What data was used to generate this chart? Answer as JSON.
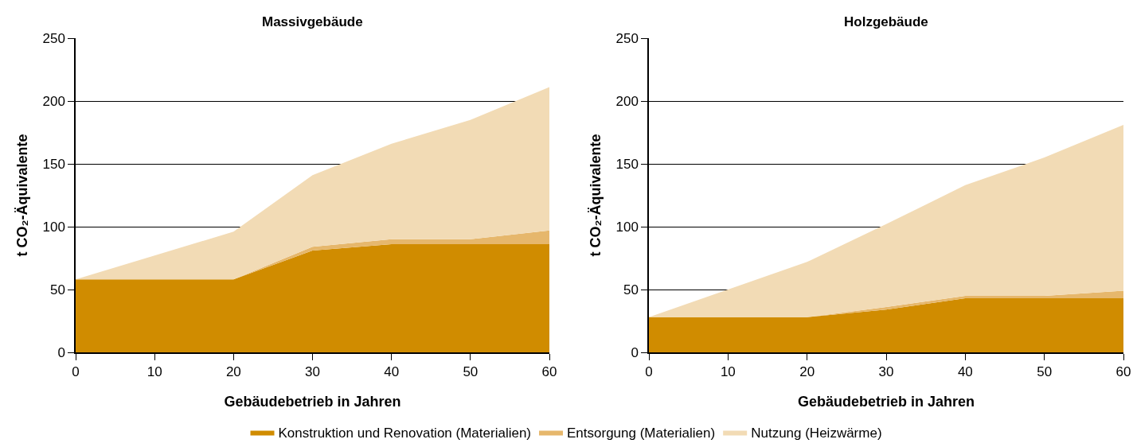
{
  "chart_data": [
    {
      "type": "area",
      "stacked": true,
      "title": "Massivgebäude",
      "xlabel": "Gebäudebetrieb in Jahren",
      "ylabel": "t CO₂-Äquivalente",
      "x": [
        0,
        10,
        20,
        30,
        40,
        50,
        60
      ],
      "xlim": [
        0,
        60
      ],
      "xticks": [
        0,
        10,
        20,
        30,
        40,
        50,
        60
      ],
      "ylim": [
        0,
        250
      ],
      "yticks": [
        0,
        50,
        100,
        150,
        200,
        250
      ],
      "grid": "y",
      "legend": "bottom",
      "series": [
        {
          "name": "Konstruktion und Renovation (Materialien)",
          "color": "#d08c00",
          "values": [
            58,
            58,
            58,
            81,
            86,
            86,
            86
          ]
        },
        {
          "name": "Entsorgung (Materialien)",
          "color": "#e6b76c",
          "values": [
            0,
            0,
            0,
            3,
            4,
            4,
            11
          ]
        },
        {
          "name": "Nutzung (Heizwärme)",
          "color": "#f2dbb5",
          "values": [
            0,
            19,
            38,
            57,
            76,
            95,
            114
          ]
        }
      ]
    },
    {
      "type": "area",
      "stacked": true,
      "title": "Holzgebäude",
      "xlabel": "Gebäudebetrieb in Jahren",
      "ylabel": "t CO₂-Äquivalente",
      "x": [
        0,
        10,
        20,
        30,
        40,
        50,
        60
      ],
      "xlim": [
        0,
        60
      ],
      "xticks": [
        0,
        10,
        20,
        30,
        40,
        50,
        60
      ],
      "ylim": [
        0,
        250
      ],
      "yticks": [
        0,
        50,
        100,
        150,
        200,
        250
      ],
      "grid": "y",
      "series": [
        {
          "color": "#d08c00",
          "values": [
            28,
            28,
            28,
            34,
            43,
            43,
            43
          ]
        },
        {
          "color": "#e6b76c",
          "values": [
            0,
            0,
            0,
            2,
            2,
            2,
            6
          ]
        },
        {
          "color": "#f2dbb5",
          "values": [
            0,
            22,
            44,
            66,
            88,
            110,
            132
          ]
        }
      ]
    }
  ]
}
